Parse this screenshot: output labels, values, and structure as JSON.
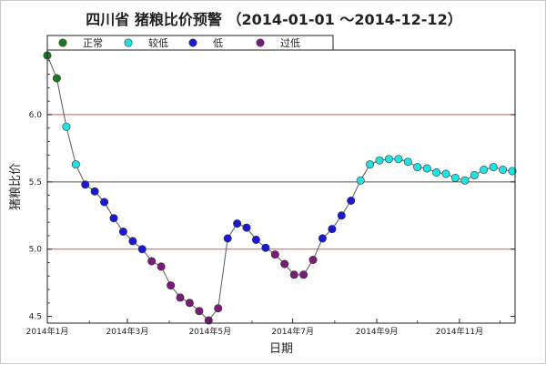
{
  "chart_data": {
    "type": "line",
    "title": "四川省 猪粮比价预警 （2014-01-01 ～2014-12-12）",
    "xlabel": "日期",
    "ylabel": "猪粮比价",
    "x_range": [
      "2014-01-01",
      "2014-12-12"
    ],
    "ylim": [
      4.45,
      6.48
    ],
    "y_ticks": [
      "4.5",
      "5.0",
      "5.5",
      "6.0"
    ],
    "y_tick_values": [
      4.5,
      5.0,
      5.5,
      6.0
    ],
    "x_ticks": [
      {
        "date": "2014-01-01",
        "label": "2014年1月"
      },
      {
        "date": "2014-03-01",
        "label": "2014年3月"
      },
      {
        "date": "2014-05-01",
        "label": "2014年5月"
      },
      {
        "date": "2014-07-01",
        "label": "2014年7月"
      },
      {
        "date": "2014-09-01",
        "label": "2014年9月"
      },
      {
        "date": "2014-11-01",
        "label": "2014年11月"
      }
    ],
    "reference_lines": [
      {
        "value": 6.0,
        "color": "#e85050"
      },
      {
        "value": 5.5,
        "color": "#555555"
      },
      {
        "value": 5.0,
        "color": "#e85050"
      }
    ],
    "legend": [
      {
        "key": "normal",
        "label": "正常",
        "color": "#1e7a1e"
      },
      {
        "key": "slightly_low",
        "label": "较低",
        "color": "#1fe3e3"
      },
      {
        "key": "low",
        "label": "低",
        "color": "#1a1ad6"
      },
      {
        "key": "too_low",
        "label": "过低",
        "color": "#7a1a7a"
      }
    ],
    "line_color": "#666666",
    "points": [
      {
        "date": "2014-01-01",
        "value": 6.44,
        "status": "normal"
      },
      {
        "date": "2014-01-08",
        "value": 6.27,
        "status": "normal"
      },
      {
        "date": "2014-01-15",
        "value": 5.91,
        "status": "slightly_low"
      },
      {
        "date": "2014-01-22",
        "value": 5.63,
        "status": "slightly_low"
      },
      {
        "date": "2014-01-29",
        "value": 5.48,
        "status": "low"
      },
      {
        "date": "2014-02-05",
        "value": 5.43,
        "status": "low"
      },
      {
        "date": "2014-02-12",
        "value": 5.35,
        "status": "low"
      },
      {
        "date": "2014-02-19",
        "value": 5.23,
        "status": "low"
      },
      {
        "date": "2014-02-26",
        "value": 5.13,
        "status": "low"
      },
      {
        "date": "2014-03-05",
        "value": 5.06,
        "status": "low"
      },
      {
        "date": "2014-03-12",
        "value": 5.0,
        "status": "low"
      },
      {
        "date": "2014-03-19",
        "value": 4.91,
        "status": "too_low"
      },
      {
        "date": "2014-03-26",
        "value": 4.87,
        "status": "too_low"
      },
      {
        "date": "2014-04-02",
        "value": 4.73,
        "status": "too_low"
      },
      {
        "date": "2014-04-09",
        "value": 4.64,
        "status": "too_low"
      },
      {
        "date": "2014-04-16",
        "value": 4.6,
        "status": "too_low"
      },
      {
        "date": "2014-04-23",
        "value": 4.54,
        "status": "too_low"
      },
      {
        "date": "2014-04-30",
        "value": 4.47,
        "status": "too_low"
      },
      {
        "date": "2014-05-07",
        "value": 4.56,
        "status": "too_low"
      },
      {
        "date": "2014-05-14",
        "value": 5.08,
        "status": "low"
      },
      {
        "date": "2014-05-21",
        "value": 5.19,
        "status": "low"
      },
      {
        "date": "2014-05-28",
        "value": 5.16,
        "status": "low"
      },
      {
        "date": "2014-06-04",
        "value": 5.07,
        "status": "low"
      },
      {
        "date": "2014-06-11",
        "value": 5.01,
        "status": "low"
      },
      {
        "date": "2014-06-18",
        "value": 4.96,
        "status": "too_low"
      },
      {
        "date": "2014-06-25",
        "value": 4.89,
        "status": "too_low"
      },
      {
        "date": "2014-07-02",
        "value": 4.81,
        "status": "too_low"
      },
      {
        "date": "2014-07-09",
        "value": 4.81,
        "status": "too_low"
      },
      {
        "date": "2014-07-16",
        "value": 4.92,
        "status": "too_low"
      },
      {
        "date": "2014-07-23",
        "value": 5.08,
        "status": "low"
      },
      {
        "date": "2014-07-30",
        "value": 5.15,
        "status": "low"
      },
      {
        "date": "2014-08-06",
        "value": 5.25,
        "status": "low"
      },
      {
        "date": "2014-08-13",
        "value": 5.36,
        "status": "low"
      },
      {
        "date": "2014-08-20",
        "value": 5.51,
        "status": "slightly_low"
      },
      {
        "date": "2014-08-27",
        "value": 5.63,
        "status": "slightly_low"
      },
      {
        "date": "2014-09-03",
        "value": 5.66,
        "status": "slightly_low"
      },
      {
        "date": "2014-09-10",
        "value": 5.67,
        "status": "slightly_low"
      },
      {
        "date": "2014-09-17",
        "value": 5.67,
        "status": "slightly_low"
      },
      {
        "date": "2014-09-24",
        "value": 5.65,
        "status": "slightly_low"
      },
      {
        "date": "2014-10-01",
        "value": 5.61,
        "status": "slightly_low"
      },
      {
        "date": "2014-10-08",
        "value": 5.6,
        "status": "slightly_low"
      },
      {
        "date": "2014-10-15",
        "value": 5.57,
        "status": "slightly_low"
      },
      {
        "date": "2014-10-22",
        "value": 5.56,
        "status": "slightly_low"
      },
      {
        "date": "2014-10-29",
        "value": 5.53,
        "status": "slightly_low"
      },
      {
        "date": "2014-11-05",
        "value": 5.51,
        "status": "slightly_low"
      },
      {
        "date": "2014-11-12",
        "value": 5.55,
        "status": "slightly_low"
      },
      {
        "date": "2014-11-19",
        "value": 5.59,
        "status": "slightly_low"
      },
      {
        "date": "2014-11-26",
        "value": 5.61,
        "status": "slightly_low"
      },
      {
        "date": "2014-12-03",
        "value": 5.59,
        "status": "slightly_low"
      },
      {
        "date": "2014-12-10",
        "value": 5.58,
        "status": "slightly_low"
      }
    ]
  }
}
